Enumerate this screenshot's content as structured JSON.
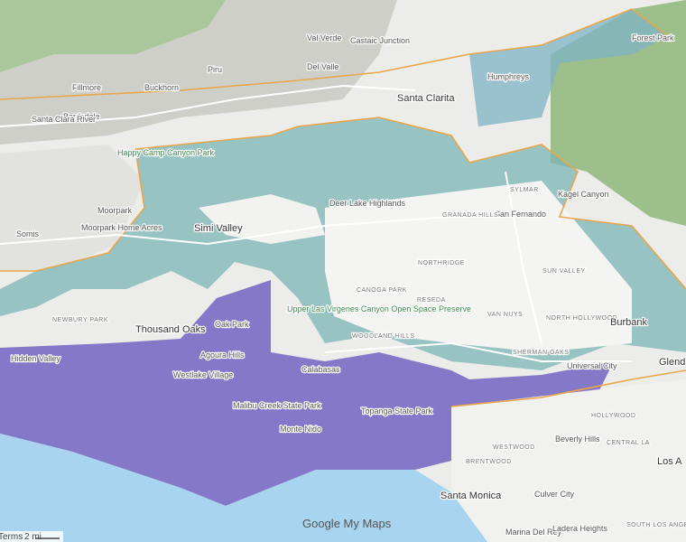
{
  "places": [
    "Fillmore",
    "Buckhorn",
    "Piru",
    "Bardsdale",
    "Val Verde",
    "Castaic Junction",
    "Del Valle",
    "Santa Clarita",
    "Humphreys",
    "Forest Park",
    "Moorpark",
    "Simi Valley",
    "Somis",
    "Moorpark Home Acres",
    "Happy Camp Canyon Park",
    "SYLMAR",
    "San Fernando",
    "Kagel Canyon",
    "NORTHRIDGE",
    "CANOGA PARK",
    "RESEDA",
    "VAN NUYS",
    "NORTH HOLLYWOOD",
    "Burbank",
    "Glenda",
    "Thousand Oaks",
    "Oak Park",
    "Agoura Hills",
    "Westlake Village",
    "NEWBURY PARK",
    "Hidden Valley",
    "Calabasas",
    "WOODLAND HILLS",
    "Topanga State Park",
    "SHERMAN OAKS",
    "Universal City",
    "HOLLYWOOD",
    "Beverly Hills",
    "WESTWOOD",
    "BRENTWOOD",
    "Santa Monica",
    "Culver City",
    "Marina Del Rey",
    "Ladera Heights",
    "SOUTH LOS ANGELES",
    "CENTRAL LA",
    "Los A",
    "Malibu Creek State Park",
    "Monte Nido",
    "GRANADA HILLS",
    "SUN VALLEY",
    "Santa Clara River",
    "Upper Las Virgenes Canyon Open Space Preserve",
    "Deer Lake Highlands"
  ],
  "footer": {
    "logo": "Google My Maps",
    "terms": "Terms",
    "scale": "2 mi"
  }
}
